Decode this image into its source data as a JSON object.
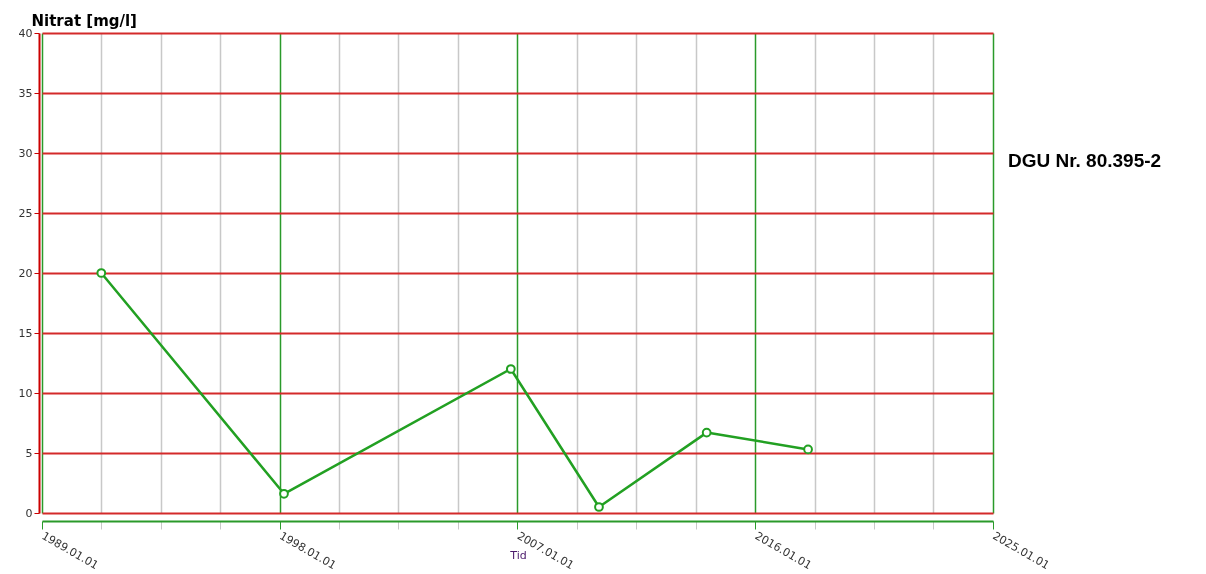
{
  "chart_data": {
    "type": "line",
    "ylabel": "Nitrat [mg/l]",
    "xlabel": "Tid",
    "x": [
      "1991-04",
      "1998-03",
      "2006-10",
      "2010-02",
      "2014-03",
      "2018-01"
    ],
    "series": [
      {
        "color": "#22a022",
        "values": [
          20,
          1.6,
          12,
          0.5,
          6.7,
          5.3
        ]
      }
    ],
    "xlim": [
      "1989-01-01",
      "2025-01-01"
    ],
    "xticks": [
      {
        "value": "1989-01-01",
        "label": "1989.01.01"
      },
      {
        "value": "1991-04-01",
        "label": null
      },
      {
        "value": "1993-07-01",
        "label": null
      },
      {
        "value": "1995-10-01",
        "label": null
      },
      {
        "value": "1998-01-01",
        "label": "1998.01.01"
      },
      {
        "value": "2000-04-01",
        "label": null
      },
      {
        "value": "2002-07-01",
        "label": null
      },
      {
        "value": "2004-10-01",
        "label": null
      },
      {
        "value": "2007-01-01",
        "label": "2007.01.01"
      },
      {
        "value": "2009-04-01",
        "label": null
      },
      {
        "value": "2011-07-01",
        "label": null
      },
      {
        "value": "2013-10-01",
        "label": null
      },
      {
        "value": "2016-01-01",
        "label": "2016.01.01"
      },
      {
        "value": "2018-04-01",
        "label": null
      },
      {
        "value": "2020-07-01",
        "label": null
      },
      {
        "value": "2022-10-01",
        "label": null
      },
      {
        "value": "2025-01-01",
        "label": "2025.01.01"
      }
    ],
    "ylim": [
      0,
      40
    ],
    "yticks": [
      0,
      5,
      10,
      15,
      20,
      25,
      30,
      35,
      40
    ],
    "grid": true,
    "marker": "circle",
    "line_style": "solid",
    "annotations": [
      "DGU Nr. 80.395-2"
    ]
  }
}
